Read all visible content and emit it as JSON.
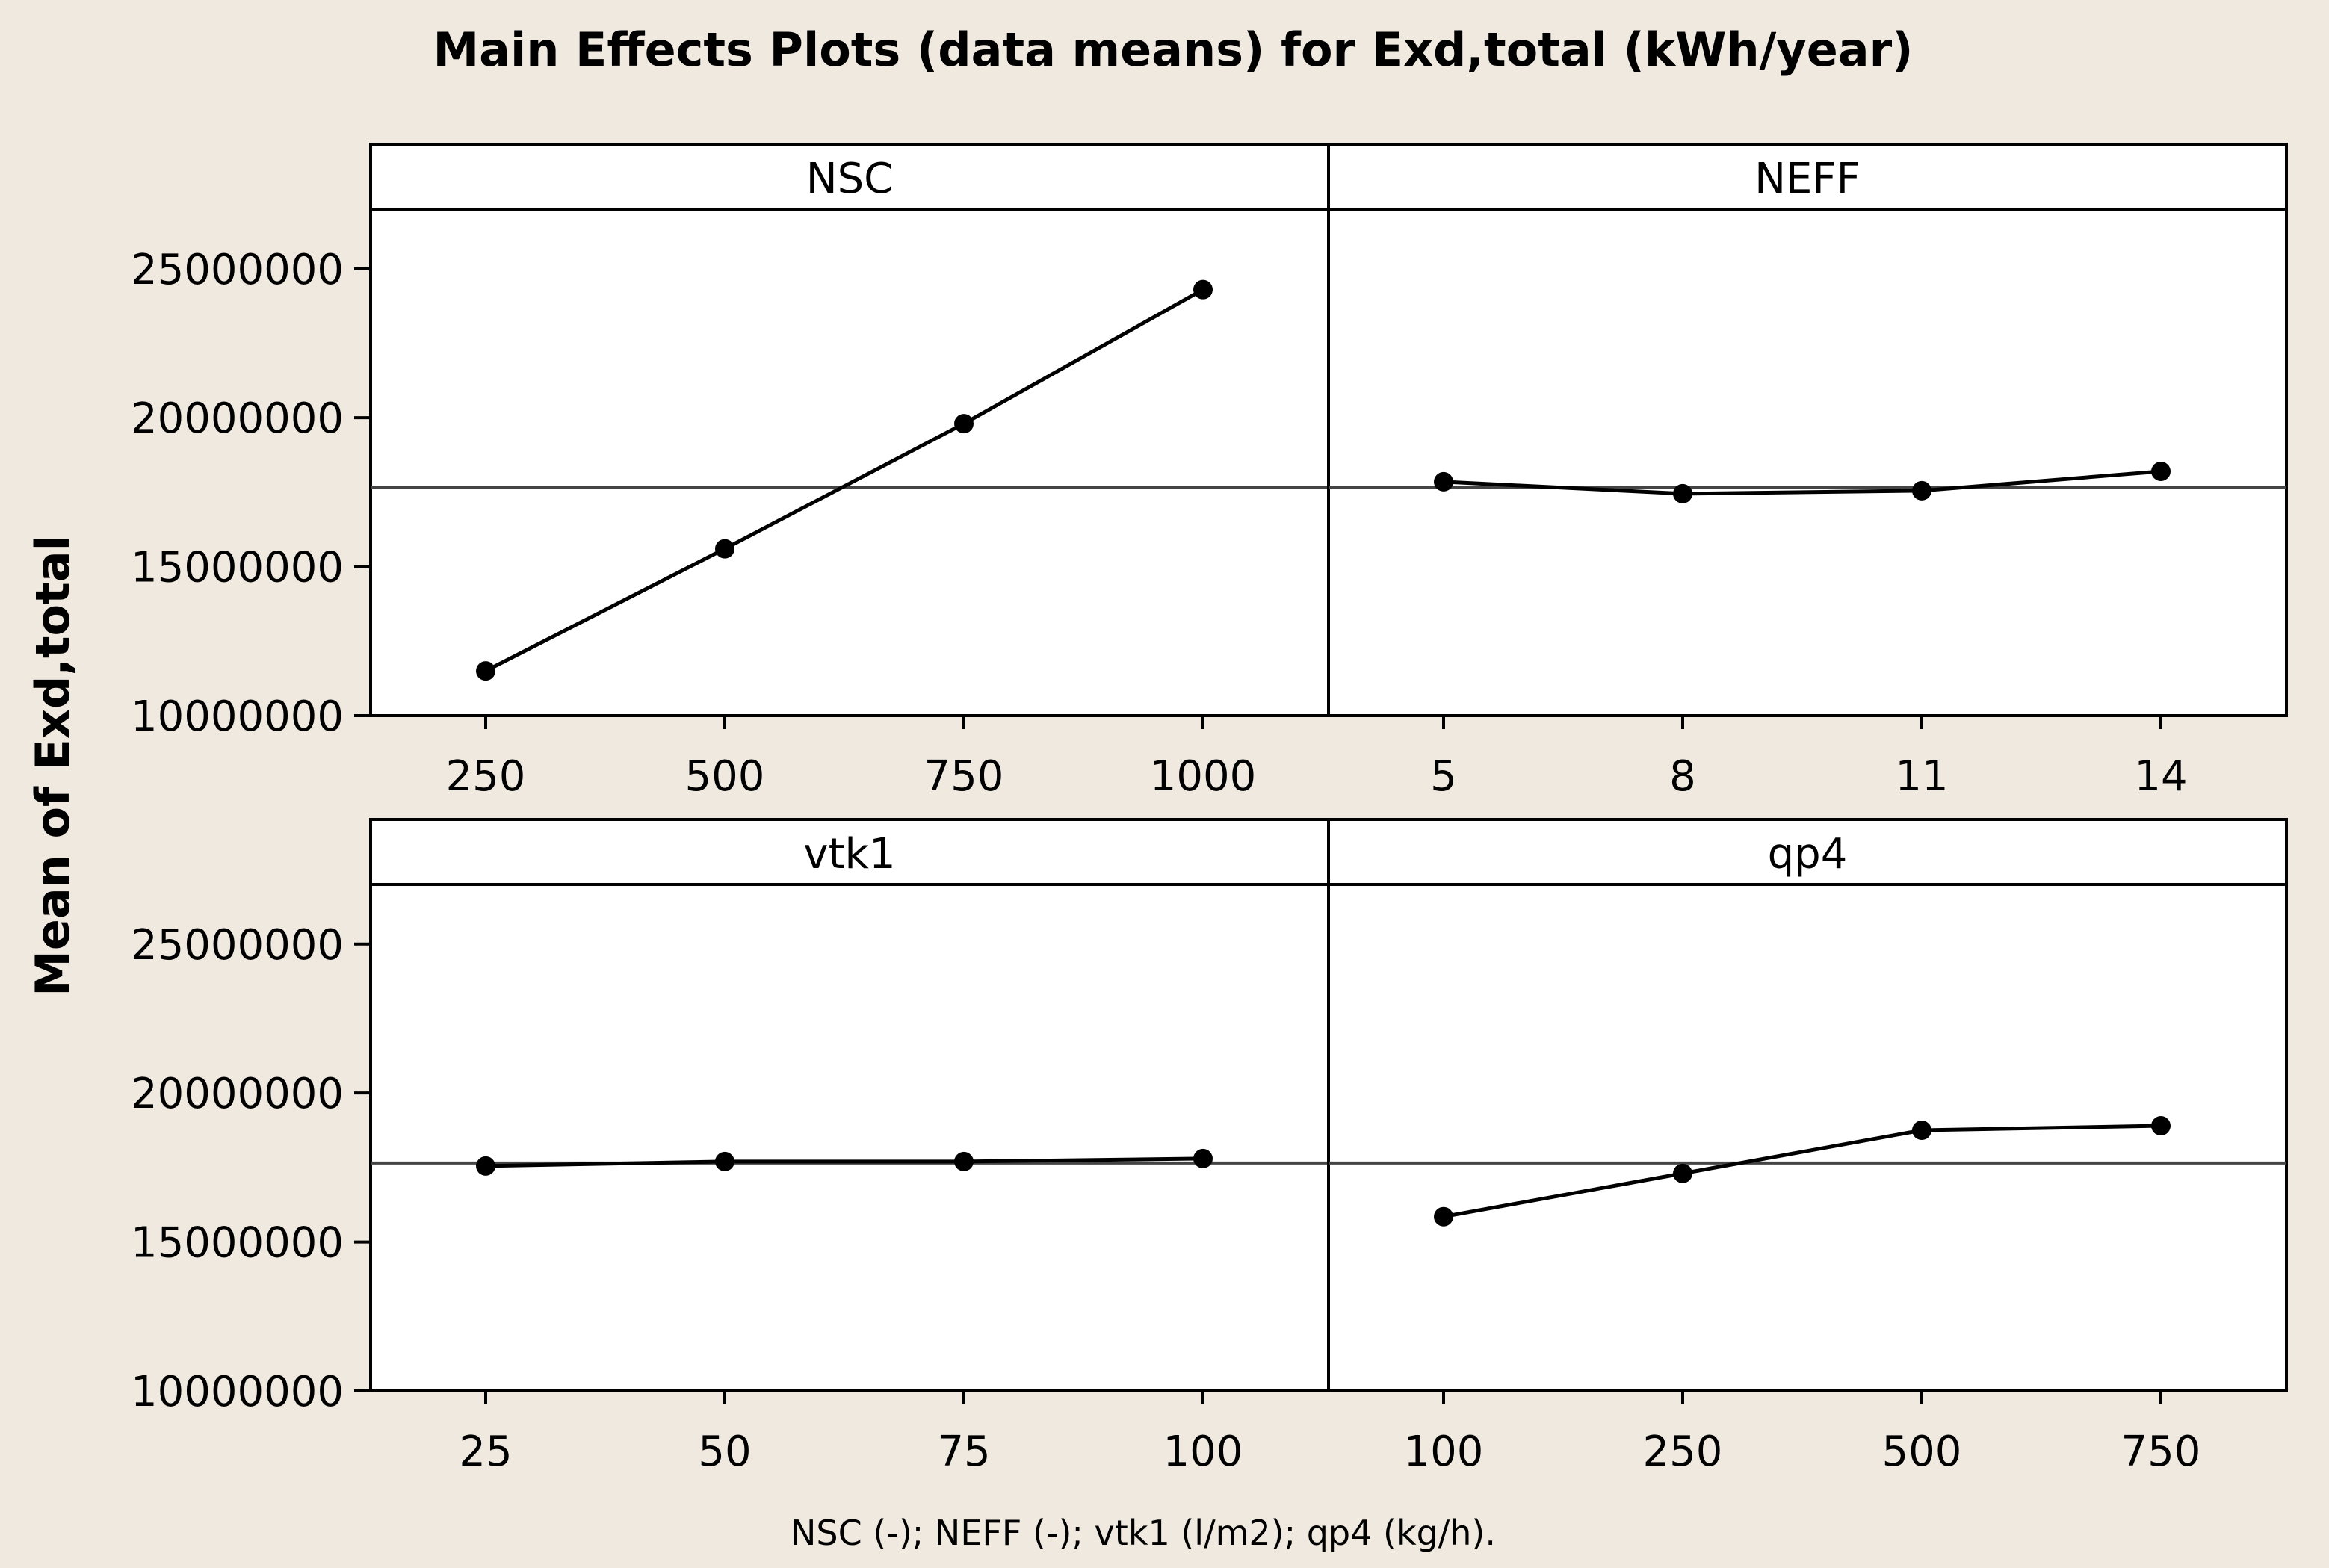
{
  "chart_data": {
    "type": "line",
    "title": "Main Effects Plots (data means) for Exd,total (kWh/year)",
    "ylabel": "Mean of Exd,total",
    "xlabel": "NSC (-); NEFF (-); vtk1 (l/m2); qp4 (kg/h).",
    "ylim": [
      10000000,
      27000000
    ],
    "yticks": [
      10000000,
      15000000,
      20000000,
      25000000
    ],
    "ytick_labels": [
      "10000000",
      "15000000",
      "20000000",
      "25000000"
    ],
    "reference_mean": 17650000,
    "grid": false,
    "panels": [
      {
        "name": "NSC",
        "categories": [
          "250",
          "500",
          "750",
          "1000"
        ],
        "values": [
          11500000,
          15600000,
          19800000,
          24300000
        ]
      },
      {
        "name": "NEFF",
        "categories": [
          "5",
          "8",
          "11",
          "14"
        ],
        "values": [
          17850000,
          17450000,
          17550000,
          18200000
        ]
      },
      {
        "name": "vtk1",
        "categories": [
          "25",
          "50",
          "75",
          "100"
        ],
        "values": [
          17550000,
          17700000,
          17700000,
          17800000
        ]
      },
      {
        "name": "qp4",
        "categories": [
          "100",
          "250",
          "500",
          "750"
        ],
        "values": [
          15850000,
          17300000,
          18750000,
          18900000
        ]
      }
    ],
    "colors": {
      "line": "#000000",
      "marker": "#000000",
      "reference_line": "#444444",
      "background": "#efe9df",
      "panel": "#ffffff"
    }
  }
}
